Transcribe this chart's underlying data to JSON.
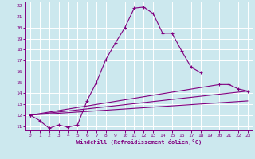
{
  "xlabel": "Windchill (Refroidissement éolien,°C)",
  "background_color": "#cce8ee",
  "grid_color": "#ffffff",
  "line_color": "#800080",
  "xlim": [
    -0.5,
    23.5
  ],
  "ylim": [
    10.6,
    22.4
  ],
  "xticks": [
    0,
    1,
    2,
    3,
    4,
    5,
    6,
    7,
    8,
    9,
    10,
    11,
    12,
    13,
    14,
    15,
    16,
    17,
    18,
    19,
    20,
    21,
    22,
    23
  ],
  "yticks": [
    11,
    12,
    13,
    14,
    15,
    16,
    17,
    18,
    19,
    20,
    21,
    22
  ],
  "series1_x": [
    0,
    1,
    2,
    3,
    4,
    5,
    6,
    7,
    8,
    9,
    10,
    11,
    12,
    13,
    14,
    15,
    16,
    17,
    18
  ],
  "series1_y": [
    12.0,
    11.5,
    10.8,
    11.1,
    10.9,
    11.1,
    13.3,
    15.0,
    17.1,
    18.6,
    20.0,
    21.8,
    21.9,
    21.3,
    19.5,
    19.5,
    17.9,
    16.4,
    15.9
  ],
  "series2_x": [
    0,
    20,
    21,
    22,
    23
  ],
  "series2_y": [
    12.0,
    14.8,
    14.8,
    14.4,
    14.2
  ],
  "series3_x": [
    0,
    23
  ],
  "series3_y": [
    12.0,
    14.2
  ],
  "series4_x": [
    0,
    23
  ],
  "series4_y": [
    12.0,
    13.3
  ]
}
